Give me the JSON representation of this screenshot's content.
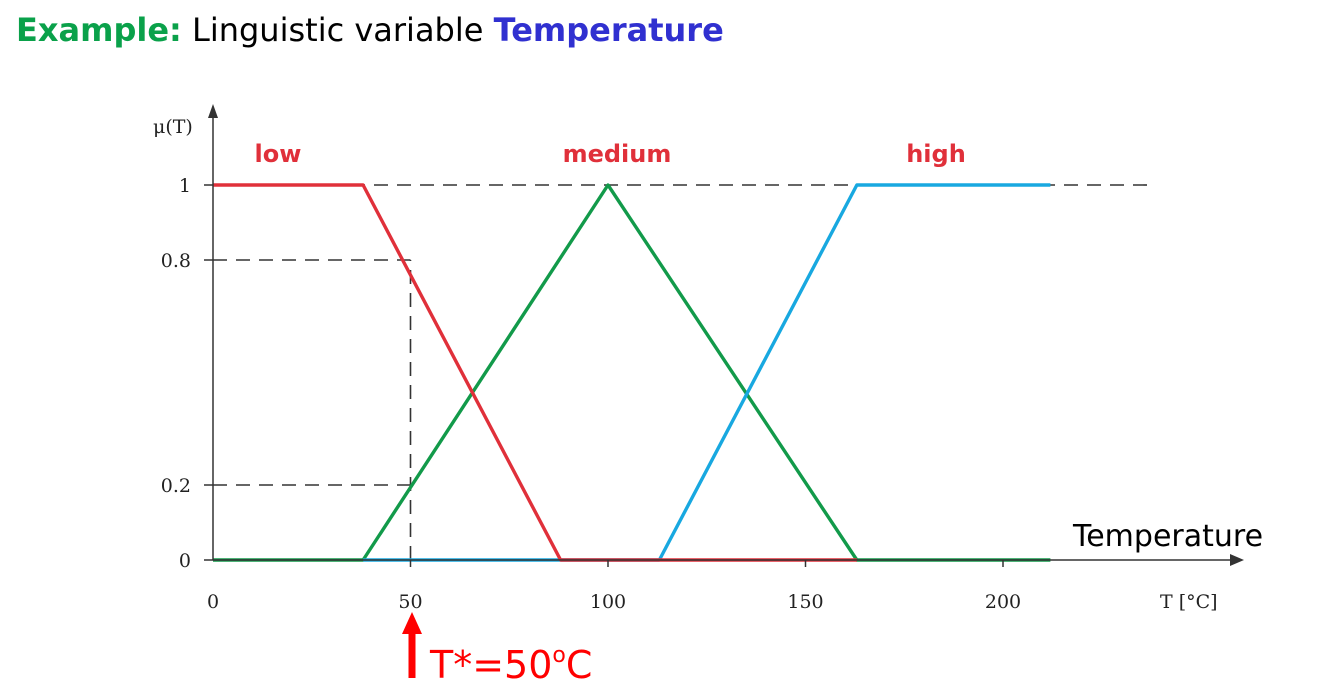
{
  "heading": {
    "lead": "Example:",
    "text": "Linguistic variable",
    "variable": "Temperature",
    "lead_color": "#0aa14a",
    "variable_color": "#3030d0"
  },
  "chart_data": {
    "type": "line",
    "title": "",
    "ylabel": "μ(T)",
    "xlabel": "T [°C]",
    "axis_title": "Temperature",
    "xlim": [
      0,
      230
    ],
    "ylim": [
      0,
      1.05
    ],
    "x_ticks": [
      0,
      50,
      100,
      150,
      200
    ],
    "y_ticks": [
      0,
      0.2,
      0.8,
      1
    ],
    "grid": false,
    "series": [
      {
        "name": "low",
        "color": "#e0303a",
        "x": [
          0,
          38,
          88,
          163
        ],
        "y": [
          1,
          1,
          0,
          0
        ]
      },
      {
        "name": "medium",
        "color": "#129a4a",
        "x": [
          0,
          38,
          100,
          163,
          212
        ],
        "y": [
          0,
          0,
          1,
          0,
          0
        ]
      },
      {
        "name": "high",
        "color": "#18a8e0",
        "x": [
          38,
          113,
          163,
          212
        ],
        "y": [
          0,
          0,
          1,
          1
        ]
      }
    ],
    "series_label_color": "#e0303a",
    "reference_lines": [
      {
        "axis": "y",
        "value": 1,
        "from": 0,
        "to": 238
      },
      {
        "axis": "y",
        "value": 0.8,
        "from": 0,
        "to": 50
      },
      {
        "axis": "y",
        "value": 0.2,
        "from": 0,
        "to": 50
      },
      {
        "axis": "x",
        "value": 50,
        "from": 0,
        "to": 0.8
      }
    ],
    "crisp_input": {
      "label": "T*=50",
      "superscript": "o",
      "suffix": "C",
      "x": 50,
      "color": "#ff0000"
    }
  }
}
